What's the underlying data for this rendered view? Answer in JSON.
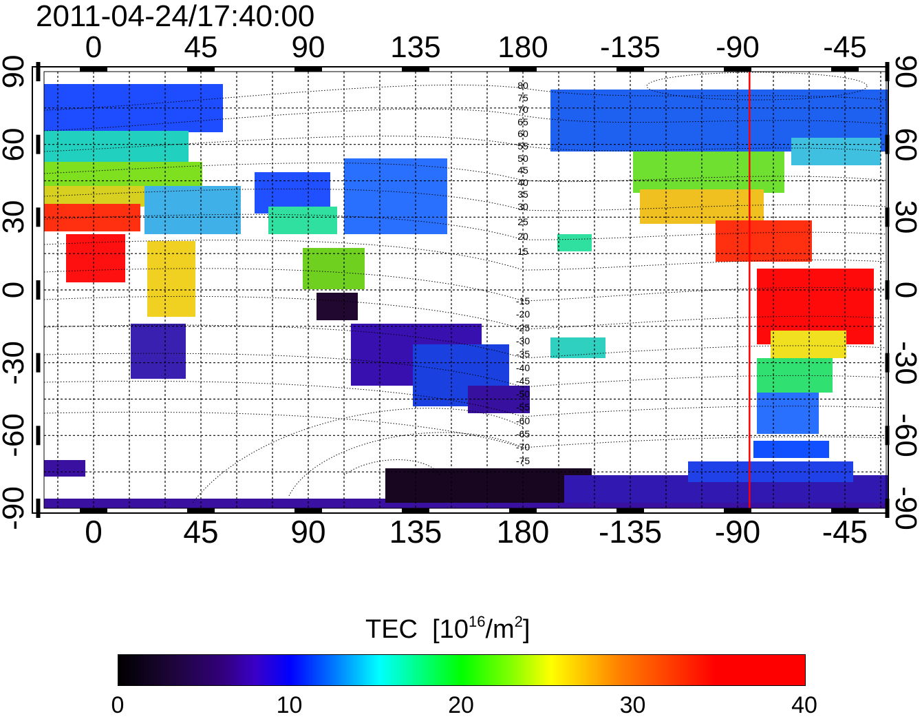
{
  "title": "2011-04-24/17:40:00",
  "longitude_ticks": [
    "0",
    "45",
    "90",
    "135",
    "180",
    "-135",
    "-90",
    "-45"
  ],
  "latitude_ticks": [
    "90",
    "60",
    "30",
    "0",
    "-30",
    "-60",
    "-90"
  ],
  "mlat_labels_north": [
    "80",
    "75",
    "70",
    "65",
    "60",
    "55",
    "50",
    "45",
    "40",
    "35",
    "30",
    "25",
    "20",
    "15"
  ],
  "mlat_labels_south": [
    "-15",
    "-20",
    "-25",
    "-30",
    "-35",
    "-40",
    "-45",
    "-50",
    "-55",
    "-60",
    "-65",
    "-70",
    "-75"
  ],
  "subsolar_marker_longitude": -85,
  "colorbar": {
    "title": "TEC",
    "unit_prefix": "[10",
    "unit_exponent": "16",
    "unit_mid": "/m",
    "unit_square": "2",
    "unit_suffix": "]",
    "ticks": [
      "0",
      "10",
      "20",
      "30",
      "40"
    ],
    "range": [
      0,
      40
    ]
  },
  "colors": {
    "marker_line": "#ff0000",
    "grid": "#000000",
    "frame": "#000000"
  }
}
